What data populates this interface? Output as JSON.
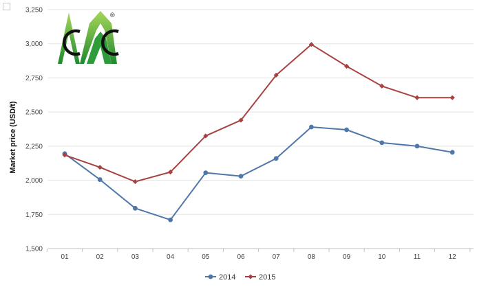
{
  "chart_data": {
    "type": "line",
    "title": "",
    "xlabel": "",
    "ylabel": "Market price (USD/t)",
    "categories": [
      "01",
      "02",
      "03",
      "04",
      "05",
      "06",
      "07",
      "08",
      "09",
      "10",
      "11",
      "12"
    ],
    "series": [
      {
        "name": "2014",
        "color": "#4f77a8",
        "marker": "circle",
        "values": [
          2195,
          2005,
          1795,
          1710,
          2055,
          2030,
          2160,
          2390,
          2370,
          2275,
          2250,
          2205
        ]
      },
      {
        "name": "2015",
        "color": "#a84241",
        "marker": "diamond",
        "values": [
          2185,
          2095,
          1990,
          2060,
          2325,
          2440,
          2770,
          2995,
          2835,
          2690,
          2605,
          2605
        ]
      }
    ],
    "ylim": [
      1500,
      3250
    ],
    "yticks": [
      1500,
      1750,
      2000,
      2250,
      2500,
      2750,
      3000,
      3250
    ],
    "ytick_labels": [
      "1,500",
      "1,750",
      "2,000",
      "2,250",
      "2,500",
      "2,750",
      "3,000",
      "3,250"
    ],
    "grid": true,
    "legend_position": "bottom-center"
  },
  "logo": {
    "icon": "cmc-logo-icon",
    "registered_mark": "®"
  }
}
